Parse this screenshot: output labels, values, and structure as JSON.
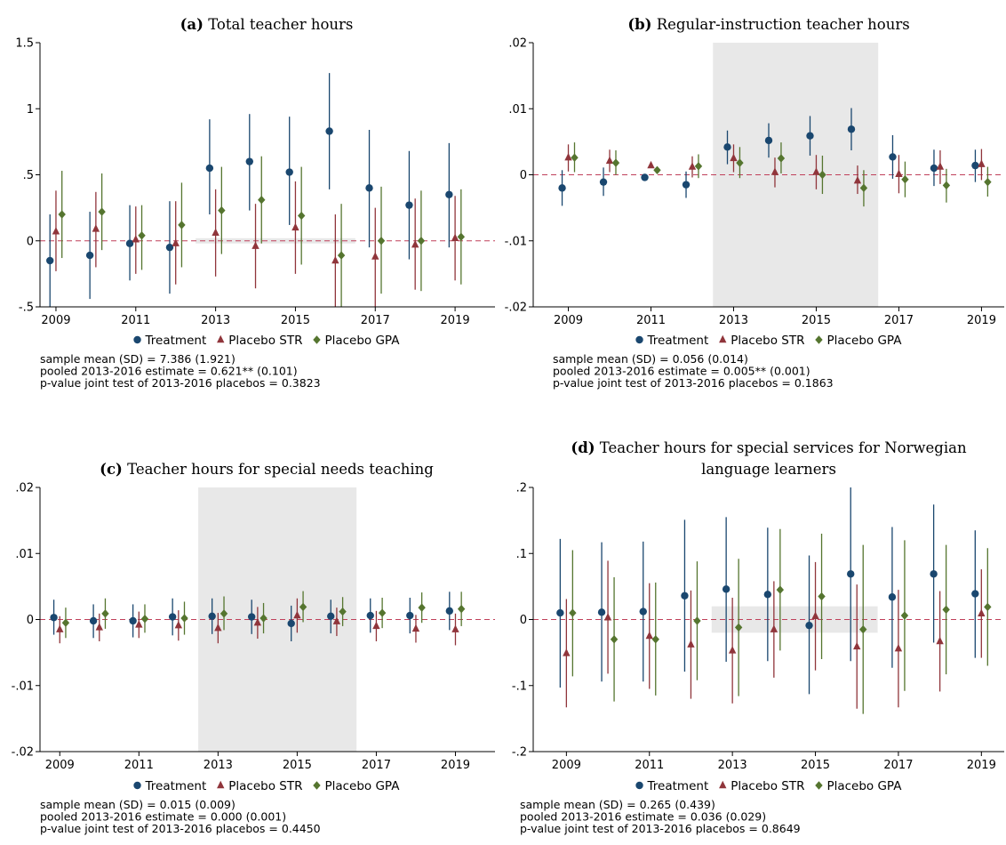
{
  "chart_data": [
    {
      "type": "errorbar",
      "label": "(a)",
      "title": "Total teacher hours",
      "x": [
        2009,
        2010,
        2011,
        2012,
        2013,
        2014,
        2015,
        2016,
        2017,
        2018,
        2019
      ],
      "xlim": [
        2008.6,
        2020.0
      ],
      "xticks": [
        2009,
        2011,
        2013,
        2015,
        2017,
        2019
      ],
      "ylim": [
        -0.5,
        1.5
      ],
      "yticks": [
        {
          "value": -0.5,
          "label": "-.5"
        },
        0,
        {
          "value": 0.5,
          "label": ".5"
        },
        1,
        1.5
      ],
      "refline": 0,
      "shade": {
        "x": [
          2012.5,
          2016.5
        ],
        "y": [
          -0.02,
          0.02
        ]
      },
      "series": [
        {
          "name": "Treatment",
          "color": "#1a476f",
          "marker": "circle",
          "values": [
            -0.15,
            -0.11,
            -0.02,
            -0.05,
            0.55,
            0.6,
            0.52,
            0.83,
            0.4,
            0.27,
            0.35
          ],
          "lower": [
            -0.52,
            -0.44,
            -0.3,
            -0.4,
            0.2,
            0.23,
            0.12,
            0.39,
            -0.05,
            -0.14,
            -0.05
          ],
          "upper": [
            0.2,
            0.22,
            0.27,
            0.3,
            0.92,
            0.96,
            0.94,
            1.27,
            0.84,
            0.68,
            0.74
          ]
        },
        {
          "name": "Placebo STR",
          "color": "#90353b",
          "marker": "triangle",
          "values": [
            0.07,
            0.09,
            0.01,
            -0.02,
            0.06,
            -0.04,
            0.1,
            -0.15,
            -0.12,
            -0.03,
            0.02
          ],
          "lower": [
            -0.23,
            -0.2,
            -0.25,
            -0.33,
            -0.27,
            -0.36,
            -0.25,
            -0.52,
            -0.5,
            -0.37,
            -0.3
          ],
          "upper": [
            0.38,
            0.37,
            0.26,
            0.3,
            0.39,
            0.28,
            0.45,
            0.2,
            0.25,
            0.32,
            0.34
          ]
        },
        {
          "name": "Placebo GPA",
          "color": "#55752f",
          "marker": "diamond",
          "values": [
            0.2,
            0.22,
            0.04,
            0.12,
            0.23,
            0.31,
            0.19,
            -0.11,
            0.0,
            0.0,
            0.03
          ],
          "lower": [
            -0.13,
            -0.07,
            -0.22,
            -0.2,
            -0.1,
            -0.02,
            -0.18,
            -0.5,
            -0.4,
            -0.38,
            -0.33
          ],
          "upper": [
            0.53,
            0.51,
            0.27,
            0.44,
            0.56,
            0.64,
            0.56,
            0.28,
            0.41,
            0.38,
            0.39
          ]
        }
      ],
      "notes": [
        "sample mean (SD) = 7.386 (1.921)",
        "pooled 2013-2016 estimate = 0.621** (0.101)",
        "p-value joint test of 2013-2016 placebos = 0.3823"
      ]
    },
    {
      "type": "errorbar",
      "label": "(b)",
      "title": "Regular-instruction teacher hours",
      "x": [
        2009,
        2010,
        2011,
        2012,
        2013,
        2014,
        2015,
        2016,
        2017,
        2018,
        2019
      ],
      "xlim": [
        2008.15,
        2019.55
      ],
      "xticks": [
        2009,
        2011,
        2013,
        2015,
        2017,
        2019
      ],
      "ylim": [
        -0.02,
        0.02
      ],
      "yticks": [
        {
          "value": -0.02,
          "label": "-.02"
        },
        {
          "value": -0.01,
          "label": "-.01"
        },
        0,
        {
          "value": 0.01,
          "label": ".01"
        },
        {
          "value": 0.02,
          "label": ".02"
        }
      ],
      "refline": 0,
      "shade": {
        "x": [
          2012.5,
          2016.5
        ],
        "y": [
          -0.02,
          0.02
        ]
      },
      "series": [
        {
          "name": "Treatment",
          "color": "#1a476f",
          "marker": "circle",
          "values": [
            -0.002,
            -0.0011,
            -0.0004,
            -0.0015,
            0.0042,
            0.0052,
            0.0059,
            0.0069,
            0.0027,
            0.001,
            0.0014
          ],
          "lower": [
            -0.0047,
            -0.0032,
            -0.0007,
            -0.0035,
            0.0016,
            0.0026,
            0.0029,
            0.0037,
            -0.0006,
            -0.0017,
            -0.0011
          ],
          "upper": [
            0.0007,
            0.0011,
            -0.0001,
            0.0005,
            0.0067,
            0.0078,
            0.0089,
            0.0101,
            0.006,
            0.0038,
            0.0038
          ]
        },
        {
          "name": "Placebo STR",
          "color": "#90353b",
          "marker": "triangle",
          "values": [
            0.0026,
            0.0021,
            0.0014,
            0.0012,
            0.0025,
            0.0004,
            0.0004,
            -0.0009,
            0.0001,
            0.0012,
            0.0016
          ],
          "lower": [
            0.0005,
            0.0004,
            0.0012,
            -0.0004,
            0.0004,
            -0.0019,
            -0.0022,
            -0.0029,
            -0.0028,
            -0.0014,
            -0.0008
          ],
          "upper": [
            0.0046,
            0.0038,
            0.0016,
            0.0028,
            0.0046,
            0.0026,
            0.003,
            0.0014,
            0.003,
            0.0037,
            0.0039
          ]
        },
        {
          "name": "Placebo GPA",
          "color": "#55752f",
          "marker": "diamond",
          "values": [
            0.0026,
            0.0018,
            0.0007,
            0.0013,
            0.0018,
            0.0025,
            0.0,
            -0.002,
            -0.0007,
            -0.0016,
            -0.0011
          ],
          "lower": [
            0.0004,
            0.0,
            0.0005,
            -0.0005,
            -0.0005,
            0.0002,
            -0.0029,
            -0.0048,
            -0.0034,
            -0.0042,
            -0.0033
          ],
          "upper": [
            0.0049,
            0.0037,
            0.0009,
            0.0031,
            0.0042,
            0.0049,
            0.0029,
            0.0007,
            0.002,
            0.0009,
            0.0012
          ]
        }
      ],
      "notes": [
        "sample mean (SD) = 0.056 (0.014)",
        "pooled 2013-2016 estimate = 0.005** (0.001)",
        "p-value joint test of 2013-2016 placebos = 0.1863"
      ]
    },
    {
      "type": "errorbar",
      "label": "(c)",
      "title": "Teacher hours for special needs teaching",
      "x": [
        2009,
        2010,
        2011,
        2012,
        2013,
        2014,
        2015,
        2016,
        2017,
        2018,
        2019
      ],
      "xlim": [
        2008.5,
        2020.0
      ],
      "xticks": [
        2009,
        2011,
        2013,
        2015,
        2017,
        2019
      ],
      "ylim": [
        -0.02,
        0.02
      ],
      "yticks": [
        {
          "value": -0.02,
          "label": "-.02"
        },
        {
          "value": -0.01,
          "label": "-.01"
        },
        0,
        {
          "value": 0.01,
          "label": ".01"
        },
        {
          "value": 0.02,
          "label": ".02"
        }
      ],
      "refline": 0,
      "shade": {
        "x": [
          2012.5,
          2016.5
        ],
        "y": [
          -0.02,
          0.02
        ]
      },
      "series": [
        {
          "name": "Treatment",
          "color": "#1a476f",
          "marker": "circle",
          "values": [
            0.0003,
            -0.0002,
            -0.0002,
            0.0004,
            0.0005,
            0.0004,
            -0.0006,
            0.0005,
            0.0006,
            0.0006,
            0.0013
          ],
          "lower": [
            -0.0023,
            -0.0028,
            -0.0027,
            -0.0024,
            -0.0022,
            -0.0022,
            -0.0033,
            -0.0021,
            -0.002,
            -0.0021,
            -0.0016
          ],
          "upper": [
            0.003,
            0.0023,
            0.0023,
            0.0032,
            0.0032,
            0.003,
            0.0021,
            0.003,
            0.0032,
            0.0033,
            0.0042
          ]
        },
        {
          "name": "Placebo STR",
          "color": "#90353b",
          "marker": "triangle",
          "values": [
            -0.0015,
            -0.0012,
            -0.0008,
            -0.0009,
            -0.0013,
            -0.0005,
            0.0006,
            -0.0003,
            -0.001,
            -0.0014,
            -0.0015
          ],
          "lower": [
            -0.0036,
            -0.0033,
            -0.0028,
            -0.0032,
            -0.0036,
            -0.0029,
            -0.002,
            -0.0025,
            -0.0033,
            -0.0035,
            -0.0039
          ],
          "upper": [
            0.0005,
            0.0009,
            0.0012,
            0.0014,
            0.001,
            0.0019,
            0.0032,
            0.0018,
            0.0013,
            0.0007,
            0.0009
          ]
        },
        {
          "name": "Placebo GPA",
          "color": "#55752f",
          "marker": "diamond",
          "values": [
            -0.0005,
            0.0009,
            0.0001,
            0.0002,
            0.0009,
            0.0002,
            0.0019,
            0.0012,
            0.001,
            0.0018,
            0.0016
          ],
          "lower": [
            -0.0028,
            -0.0014,
            -0.002,
            -0.0023,
            -0.0016,
            -0.0021,
            -0.0004,
            -0.001,
            -0.0013,
            -0.0005,
            -0.001
          ],
          "upper": [
            0.0018,
            0.0032,
            0.0023,
            0.0027,
            0.0035,
            0.0025,
            0.0043,
            0.0034,
            0.0033,
            0.0041,
            0.0042
          ]
        }
      ],
      "notes": [
        "sample mean (SD) = 0.015 (0.009)",
        "pooled 2013-2016 estimate = 0.000 (0.001)",
        "p-value joint test of 2013-2016 placebos = 0.4450"
      ]
    },
    {
      "type": "errorbar",
      "label": "(d)",
      "title": "Teacher hours for special services for Norwegian language learners",
      "x": [
        2009,
        2010,
        2011,
        2012,
        2013,
        2014,
        2015,
        2016,
        2017,
        2018,
        2019
      ],
      "xlim": [
        2008.2,
        2019.55
      ],
      "xticks": [
        2009,
        2011,
        2013,
        2015,
        2017,
        2019
      ],
      "ylim": [
        -0.2,
        0.2
      ],
      "yticks": [
        {
          "value": -0.2,
          "label": "-.2"
        },
        {
          "value": -0.1,
          "label": "-.1"
        },
        0,
        {
          "value": 0.1,
          "label": ".1"
        },
        {
          "value": 0.2,
          "label": ".2"
        }
      ],
      "refline": 0,
      "shade": {
        "x": [
          2012.5,
          2016.5
        ],
        "y": [
          -0.02,
          0.02
        ]
      },
      "series": [
        {
          "name": "Treatment",
          "color": "#1a476f",
          "marker": "circle",
          "values": [
            0.01,
            0.011,
            0.012,
            0.036,
            0.046,
            0.038,
            -0.009,
            0.069,
            0.034,
            0.069,
            0.039
          ],
          "lower": [
            -0.103,
            -0.094,
            -0.094,
            -0.079,
            -0.064,
            -0.063,
            -0.113,
            -0.063,
            -0.073,
            -0.035,
            -0.058
          ],
          "upper": [
            0.122,
            0.117,
            0.118,
            0.151,
            0.155,
            0.139,
            0.097,
            0.201,
            0.14,
            0.174,
            0.135
          ]
        },
        {
          "name": "Placebo STR",
          "color": "#90353b",
          "marker": "triangle",
          "values": [
            -0.051,
            0.003,
            -0.025,
            -0.038,
            -0.047,
            -0.015,
            0.005,
            -0.041,
            -0.044,
            -0.033,
            0.009
          ],
          "lower": [
            -0.133,
            -0.082,
            -0.105,
            -0.12,
            -0.127,
            -0.088,
            -0.077,
            -0.135,
            -0.133,
            -0.109,
            -0.058
          ],
          "upper": [
            0.031,
            0.089,
            0.055,
            0.044,
            0.033,
            0.058,
            0.087,
            0.053,
            0.045,
            0.043,
            0.076
          ]
        },
        {
          "name": "Placebo GPA",
          "color": "#55752f",
          "marker": "diamond",
          "values": [
            0.01,
            -0.03,
            -0.03,
            -0.002,
            -0.012,
            0.045,
            0.035,
            -0.015,
            0.006,
            0.015,
            0.019
          ],
          "lower": [
            -0.086,
            -0.124,
            -0.115,
            -0.092,
            -0.116,
            -0.047,
            -0.06,
            -0.143,
            -0.108,
            -0.083,
            -0.07
          ],
          "upper": [
            0.105,
            0.064,
            0.056,
            0.088,
            0.092,
            0.137,
            0.13,
            0.113,
            0.12,
            0.113,
            0.108
          ]
        }
      ],
      "notes": [
        "sample mean (SD) = 0.265 (0.439)",
        "pooled 2013-2016 estimate = 0.036 (0.029)",
        "p-value joint test of 2013-2016 placebos = 0.8649"
      ]
    }
  ]
}
